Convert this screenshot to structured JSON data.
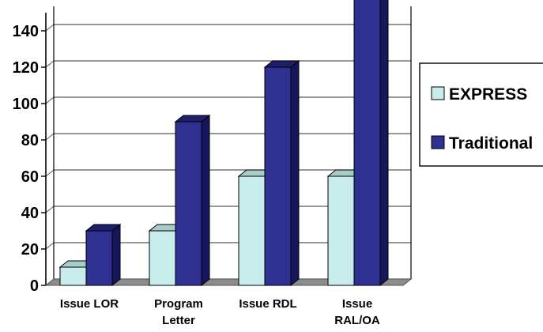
{
  "chart_data": {
    "type": "bar",
    "style": "3d-clustered-column",
    "categories": [
      [
        "Issue LOR"
      ],
      [
        "Program",
        "Letter"
      ],
      [
        "Issue RDL"
      ],
      [
        "Issue",
        "RAL/OA"
      ]
    ],
    "series": [
      {
        "name": "EXPRESS",
        "values": [
          10,
          30,
          60,
          60
        ]
      },
      {
        "name": "Traditional",
        "values": [
          30,
          90,
          120,
          160
        ]
      }
    ],
    "title": "",
    "xlabel": "",
    "ylabel": "",
    "ylim": [
      0,
      150
    ],
    "yticks": [
      "0",
      "20",
      "40",
      "60",
      "80",
      "100",
      "120",
      "140"
    ],
    "grid": true,
    "legend_position": "right"
  },
  "colors": {
    "EXPRESS": {
      "front": "#c8ecec",
      "top": "#a6cccc",
      "side": "#8fb2b2"
    },
    "Traditional": {
      "front": "#2e3192",
      "top": "#1c1f6b",
      "side": "#15175a"
    },
    "floor": "#8c8c8c",
    "gridline": "#5a5a5a"
  }
}
